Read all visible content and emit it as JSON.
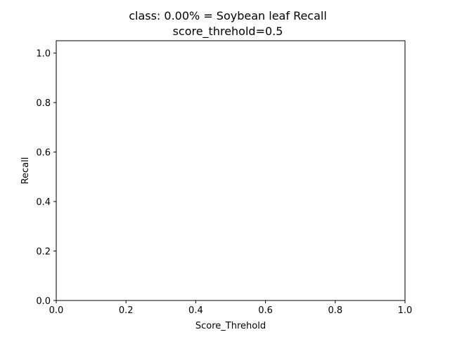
{
  "chart_data": {
    "type": "line",
    "title": "class: 0.00% = Soybean leaf Recall",
    "subtitle": "score_threhold=0.5",
    "xlabel": "Score_Threhold",
    "ylabel": "Recall",
    "xlim": [
      0.0,
      1.0
    ],
    "ylim": [
      0.0,
      1.05
    ],
    "xticks": [
      "0.0",
      "0.2",
      "0.4",
      "0.6",
      "0.8",
      "1.0"
    ],
    "yticks": [
      "0.0",
      "0.2",
      "0.4",
      "0.6",
      "0.8",
      "1.0"
    ],
    "grid": false,
    "series": [],
    "colors": {
      "axes": "#000000",
      "background": "#ffffff"
    }
  }
}
